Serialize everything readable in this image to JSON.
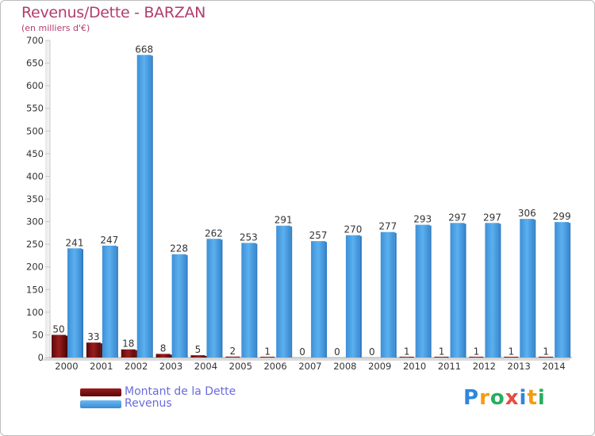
{
  "chart_data": {
    "type": "bar",
    "title": "Revenus/Dette - BARZAN",
    "subtitle": "(en milliers d'€)",
    "categories": [
      "2000",
      "2001",
      "2002",
      "2003",
      "2004",
      "2005",
      "2006",
      "2007",
      "2008",
      "2009",
      "2010",
      "2011",
      "2012",
      "2013",
      "2014"
    ],
    "series": [
      {
        "name": "Montant de la Dette",
        "color": "#7a0e0e",
        "values": [
          50,
          33,
          18,
          8,
          5,
          2,
          1,
          0,
          0,
          0,
          1,
          1,
          1,
          1,
          1
        ]
      },
      {
        "name": "Revenus",
        "color": "#4ea4e6",
        "values": [
          241,
          247,
          668,
          228,
          262,
          253,
          291,
          257,
          270,
          277,
          293,
          297,
          297,
          306,
          299
        ]
      }
    ],
    "ylim": [
      0,
      700
    ],
    "yticks": [
      0,
      50,
      100,
      150,
      200,
      250,
      300,
      350,
      400,
      450,
      500,
      550,
      600,
      650,
      700
    ],
    "grid": false,
    "legend": "bottom-left"
  },
  "logo": {
    "letters": [
      "P",
      "r",
      "o",
      "x",
      "i",
      "t",
      "i"
    ],
    "colors": [
      "#2e86de",
      "#f39c12",
      "#27ae60",
      "#e74c3c",
      "#2e86de",
      "#f39c12",
      "#27ae60"
    ]
  }
}
